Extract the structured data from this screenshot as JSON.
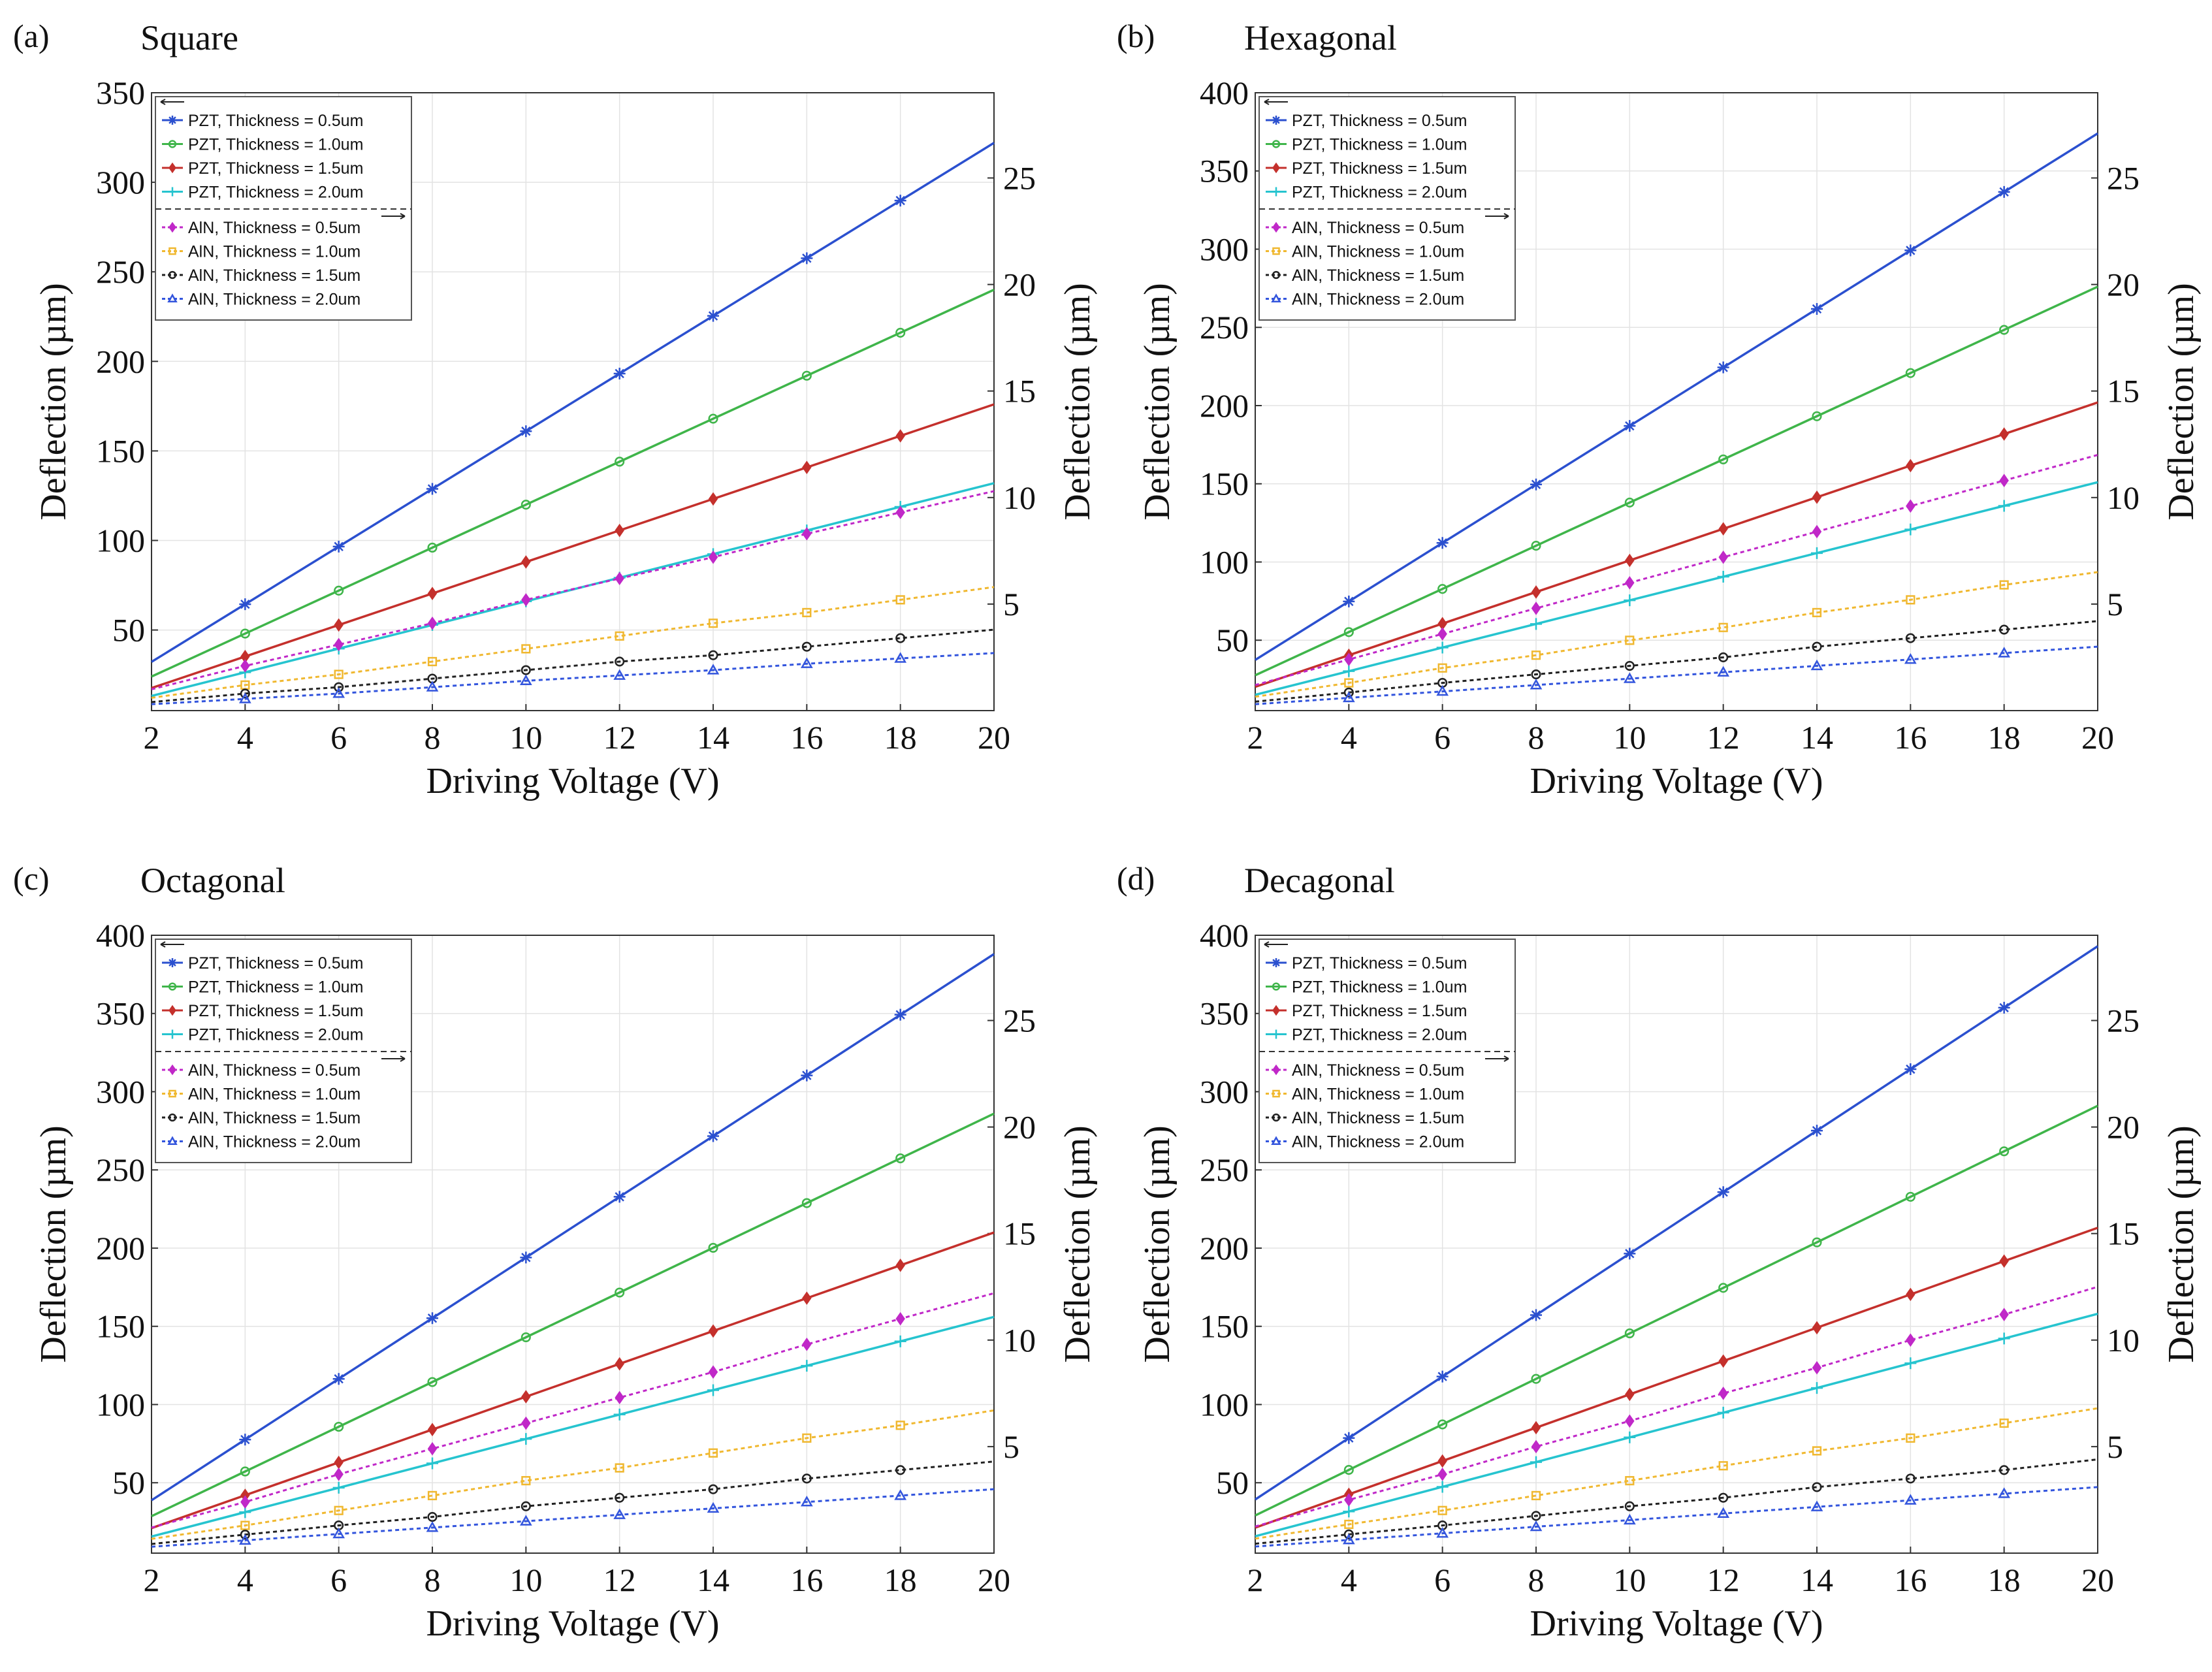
{
  "colors": {
    "pzt": [
      "#2b50cf",
      "#3fb54a",
      "#c4302c",
      "#26c4cf"
    ],
    "aln": [
      "#c028c8",
      "#f0b830",
      "#222222",
      "#3355dd"
    ]
  },
  "chart_data": [
    {
      "type": "line",
      "panel_label": "(a)",
      "title": "Square",
      "xlabel": "Driving Voltage (V)",
      "ylabel_left": "Deflection (µm)",
      "ylabel_right": "Deflection (µm)",
      "x": [
        2,
        4,
        6,
        8,
        10,
        12,
        14,
        16,
        18,
        20
      ],
      "xlim": [
        2,
        20
      ],
      "ylim_left": [
        5,
        350
      ],
      "yticks_left": [
        50,
        100,
        150,
        200,
        250,
        300,
        350
      ],
      "ylim_right": [
        0,
        29
      ],
      "yticks_right": [
        5,
        10,
        15,
        20,
        25
      ],
      "series": [
        {
          "name": "PZT, Thickness = 0.5um",
          "axis": "left",
          "marker": "star",
          "values": [
            32.2,
            64.4,
            96.6,
            128.8,
            161,
            193.2,
            225.4,
            257.6,
            289.8,
            322
          ]
        },
        {
          "name": "PZT, Thickness = 1.0um",
          "axis": "left",
          "marker": "circle",
          "values": [
            24,
            48,
            72,
            96,
            120,
            144,
            168,
            192,
            216,
            240
          ]
        },
        {
          "name": "PZT, Thickness = 1.5um",
          "axis": "left",
          "marker": "diamond",
          "values": [
            17.6,
            35.2,
            52.8,
            70.4,
            88,
            105.6,
            123.2,
            140.8,
            158.4,
            176
          ]
        },
        {
          "name": "PZT, Thickness = 2.0um",
          "axis": "left",
          "marker": "plus",
          "values": [
            13.2,
            26.4,
            39.6,
            52.8,
            66,
            79.2,
            92.4,
            105.6,
            118.8,
            132
          ]
        },
        {
          "name": "AlN, Thickness = 0.5um",
          "axis": "right",
          "marker": "diamond",
          "values": [
            1.0,
            2.1,
            3.1,
            4.1,
            5.2,
            6.2,
            7.2,
            8.3,
            9.3,
            10.3
          ]
        },
        {
          "name": "AlN, Thickness = 1.0um",
          "axis": "right",
          "marker": "square",
          "values": [
            0.6,
            1.2,
            1.7,
            2.3,
            2.9,
            3.5,
            4.1,
            4.6,
            5.2,
            5.8
          ]
        },
        {
          "name": "AlN, Thickness = 1.5um",
          "axis": "right",
          "marker": "circle",
          "values": [
            0.4,
            0.8,
            1.1,
            1.5,
            1.9,
            2.3,
            2.6,
            3.0,
            3.4,
            3.8
          ]
        },
        {
          "name": "AlN, Thickness = 2.0um",
          "axis": "right",
          "marker": "triangle",
          "values": [
            0.3,
            0.55,
            0.8,
            1.1,
            1.4,
            1.65,
            1.9,
            2.2,
            2.45,
            2.7
          ]
        }
      ]
    },
    {
      "type": "line",
      "panel_label": "(b)",
      "title": "Hexagonal",
      "xlabel": "Driving Voltage (V)",
      "ylabel_left": "Deflection (µm)",
      "ylabel_right": "Deflection (µm)",
      "x": [
        2,
        4,
        6,
        8,
        10,
        12,
        14,
        16,
        18,
        20
      ],
      "xlim": [
        2,
        20
      ],
      "ylim_left": [
        5,
        400
      ],
      "yticks_left": [
        50,
        100,
        150,
        200,
        250,
        300,
        350,
        400
      ],
      "ylim_right": [
        0,
        29
      ],
      "yticks_right": [
        5,
        10,
        15,
        20,
        25
      ],
      "series": [
        {
          "name": "PZT, Thickness = 0.5um",
          "axis": "left",
          "marker": "star",
          "values": [
            37.4,
            74.8,
            112.2,
            149.6,
            187,
            224.4,
            261.8,
            299.2,
            336.6,
            374
          ]
        },
        {
          "name": "PZT, Thickness = 1.0um",
          "axis": "left",
          "marker": "circle",
          "values": [
            27.6,
            55.2,
            82.8,
            110.4,
            138,
            165.6,
            193.2,
            220.8,
            248.4,
            276
          ]
        },
        {
          "name": "PZT, Thickness = 1.5um",
          "axis": "left",
          "marker": "diamond",
          "values": [
            20.2,
            40.4,
            60.6,
            80.8,
            101,
            121.2,
            141.4,
            161.6,
            181.8,
            202
          ]
        },
        {
          "name": "PZT, Thickness = 2.0um",
          "axis": "left",
          "marker": "plus",
          "values": [
            15.1,
            30.2,
            45.3,
            60.4,
            75.5,
            90.6,
            105.7,
            120.8,
            135.9,
            151
          ]
        },
        {
          "name": "AlN, Thickness = 0.5um",
          "axis": "right",
          "marker": "diamond",
          "values": [
            1.2,
            2.4,
            3.6,
            4.8,
            6.0,
            7.2,
            8.4,
            9.6,
            10.8,
            12.0
          ]
        },
        {
          "name": "AlN, Thickness = 1.0um",
          "axis": "right",
          "marker": "square",
          "values": [
            0.65,
            1.3,
            2.0,
            2.6,
            3.3,
            3.9,
            4.6,
            5.2,
            5.9,
            6.5
          ]
        },
        {
          "name": "AlN, Thickness = 1.5um",
          "axis": "right",
          "marker": "circle",
          "values": [
            0.42,
            0.85,
            1.3,
            1.7,
            2.1,
            2.5,
            3.0,
            3.4,
            3.8,
            4.2
          ]
        },
        {
          "name": "AlN, Thickness = 2.0um",
          "axis": "right",
          "marker": "triangle",
          "values": [
            0.3,
            0.6,
            0.9,
            1.2,
            1.5,
            1.8,
            2.1,
            2.4,
            2.7,
            3.0
          ]
        }
      ]
    },
    {
      "type": "line",
      "panel_label": "(c)",
      "title": "Octagonal",
      "xlabel": "Driving Voltage (V)",
      "ylabel_left": "Deflection (µm)",
      "ylabel_right": "Deflection (µm)",
      "x": [
        2,
        4,
        6,
        8,
        10,
        12,
        14,
        16,
        18,
        20
      ],
      "xlim": [
        2,
        20
      ],
      "ylim_left": [
        5,
        400
      ],
      "yticks_left": [
        50,
        100,
        150,
        200,
        250,
        300,
        350,
        400
      ],
      "ylim_right": [
        0,
        29
      ],
      "yticks_right": [
        5,
        10,
        15,
        20,
        25
      ],
      "series": [
        {
          "name": "PZT, Thickness = 0.5um",
          "axis": "left",
          "marker": "star",
          "values": [
            38.8,
            77.6,
            116.4,
            155.2,
            194,
            232.8,
            271.6,
            310.4,
            349.2,
            388
          ]
        },
        {
          "name": "PZT, Thickness = 1.0um",
          "axis": "left",
          "marker": "circle",
          "values": [
            28.6,
            57.2,
            85.8,
            114.4,
            143,
            171.6,
            200.2,
            228.8,
            257.4,
            286
          ]
        },
        {
          "name": "PZT, Thickness = 1.5um",
          "axis": "left",
          "marker": "diamond",
          "values": [
            21,
            42,
            63,
            84,
            105,
            126,
            147,
            168,
            189,
            210
          ]
        },
        {
          "name": "PZT, Thickness = 2.0um",
          "axis": "left",
          "marker": "plus",
          "values": [
            15.6,
            31.2,
            46.8,
            62.4,
            78,
            93.6,
            109.2,
            124.8,
            140.4,
            156
          ]
        },
        {
          "name": "AlN, Thickness = 0.5um",
          "axis": "right",
          "marker": "diamond",
          "values": [
            1.2,
            2.4,
            3.7,
            4.9,
            6.1,
            7.3,
            8.5,
            9.8,
            11.0,
            12.2
          ]
        },
        {
          "name": "AlN, Thickness = 1.0um",
          "axis": "right",
          "marker": "square",
          "values": [
            0.67,
            1.3,
            2.0,
            2.7,
            3.4,
            4.0,
            4.7,
            5.4,
            6.0,
            6.7
          ]
        },
        {
          "name": "AlN, Thickness = 1.5um",
          "axis": "right",
          "marker": "circle",
          "values": [
            0.43,
            0.87,
            1.3,
            1.7,
            2.2,
            2.6,
            3.0,
            3.5,
            3.9,
            4.3
          ]
        },
        {
          "name": "AlN, Thickness = 2.0um",
          "axis": "right",
          "marker": "triangle",
          "values": [
            0.3,
            0.6,
            0.9,
            1.2,
            1.5,
            1.8,
            2.1,
            2.4,
            2.7,
            3.0
          ]
        }
      ]
    },
    {
      "type": "line",
      "panel_label": "(d)",
      "title": "Decagonal",
      "xlabel": "Driving Voltage (V)",
      "ylabel_left": "Deflection (µm)",
      "ylabel_right": "Deflection (µm)",
      "x": [
        2,
        4,
        6,
        8,
        10,
        12,
        14,
        16,
        18,
        20
      ],
      "xlim": [
        2,
        20
      ],
      "ylim_left": [
        5,
        400
      ],
      "yticks_left": [
        50,
        100,
        150,
        200,
        250,
        300,
        350,
        400
      ],
      "ylim_right": [
        0,
        29
      ],
      "yticks_right": [
        5,
        10,
        15,
        20,
        25
      ],
      "series": [
        {
          "name": "PZT, Thickness = 0.5um",
          "axis": "left",
          "marker": "star",
          "values": [
            39.3,
            78.6,
            117.9,
            157.2,
            196.5,
            235.8,
            275.1,
            314.4,
            353.7,
            393
          ]
        },
        {
          "name": "PZT, Thickness = 1.0um",
          "axis": "left",
          "marker": "circle",
          "values": [
            29.1,
            58.2,
            87.3,
            116.4,
            145.5,
            174.6,
            203.7,
            232.8,
            261.9,
            291
          ]
        },
        {
          "name": "PZT, Thickness = 1.5um",
          "axis": "left",
          "marker": "diamond",
          "values": [
            21.3,
            42.6,
            63.9,
            85.2,
            106.5,
            127.8,
            149.1,
            170.4,
            191.7,
            213
          ]
        },
        {
          "name": "PZT, Thickness = 2.0um",
          "axis": "left",
          "marker": "plus",
          "values": [
            15.8,
            31.6,
            47.4,
            63.2,
            79,
            94.8,
            110.6,
            126.4,
            142.2,
            158
          ]
        },
        {
          "name": "AlN, Thickness = 0.5um",
          "axis": "right",
          "marker": "diamond",
          "values": [
            1.25,
            2.5,
            3.7,
            5.0,
            6.2,
            7.5,
            8.7,
            10.0,
            11.2,
            12.5
          ]
        },
        {
          "name": "AlN, Thickness = 1.0um",
          "axis": "right",
          "marker": "square",
          "values": [
            0.68,
            1.35,
            2.0,
            2.7,
            3.4,
            4.1,
            4.8,
            5.4,
            6.1,
            6.8
          ]
        },
        {
          "name": "AlN, Thickness = 1.5um",
          "axis": "right",
          "marker": "circle",
          "values": [
            0.44,
            0.88,
            1.3,
            1.75,
            2.2,
            2.6,
            3.1,
            3.5,
            3.9,
            4.4
          ]
        },
        {
          "name": "AlN, Thickness = 2.0um",
          "axis": "right",
          "marker": "triangle",
          "values": [
            0.31,
            0.62,
            0.93,
            1.24,
            1.55,
            1.86,
            2.17,
            2.48,
            2.79,
            3.1
          ]
        }
      ]
    }
  ]
}
